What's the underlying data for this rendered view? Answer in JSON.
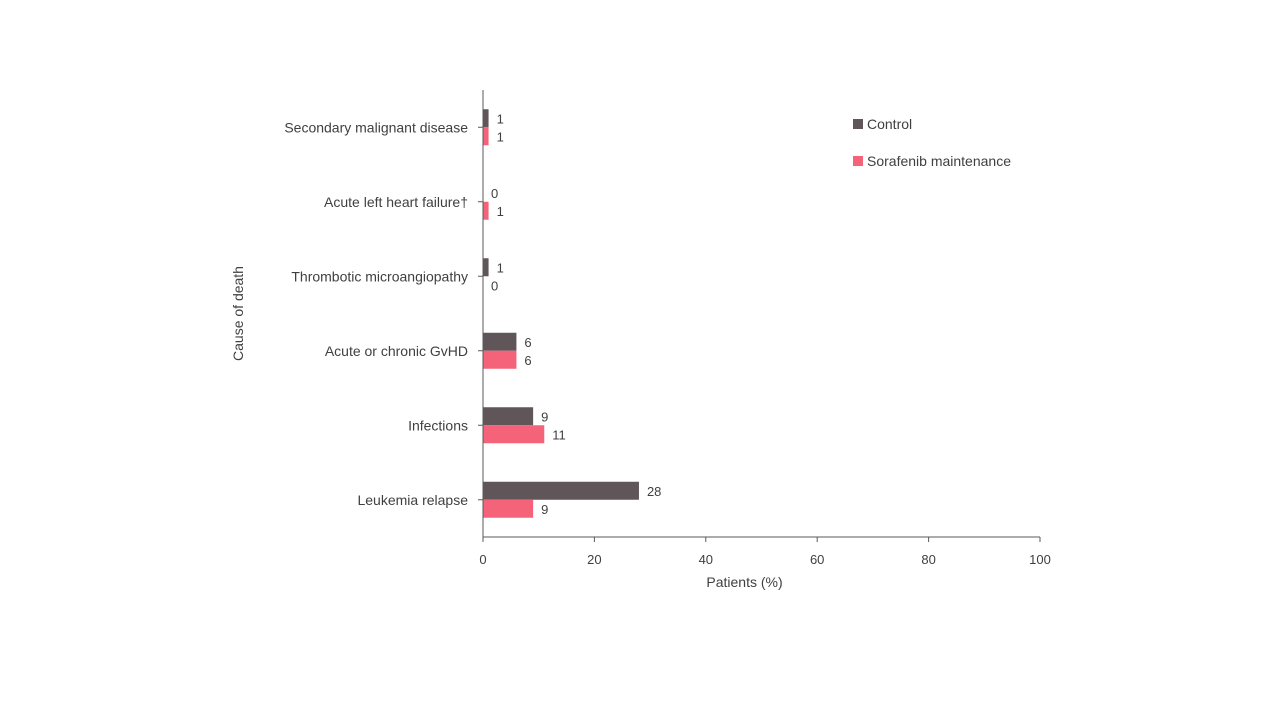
{
  "chart_data": {
    "type": "bar",
    "orientation": "horizontal",
    "categories": [
      "Leukemia relapse",
      "Infections",
      "Acute or chronic GvHD",
      "Thrombotic microangiopathy",
      "Acute left heart failure†",
      "Secondary malignant disease"
    ],
    "series": [
      {
        "name": "Control",
        "color": "#605558",
        "values": [
          28,
          9,
          6,
          1,
          0,
          1
        ]
      },
      {
        "name": "Sorafenib maintenance",
        "color": "#F4637A",
        "values": [
          9,
          11,
          6,
          0,
          1,
          1
        ]
      }
    ],
    "xlabel": "Patients (%)",
    "ylabel": "Cause of death",
    "xlim": [
      0,
      100
    ],
    "xticks": [
      0,
      20,
      40,
      60,
      80,
      100
    ],
    "grid": false,
    "legend": "top-right"
  }
}
